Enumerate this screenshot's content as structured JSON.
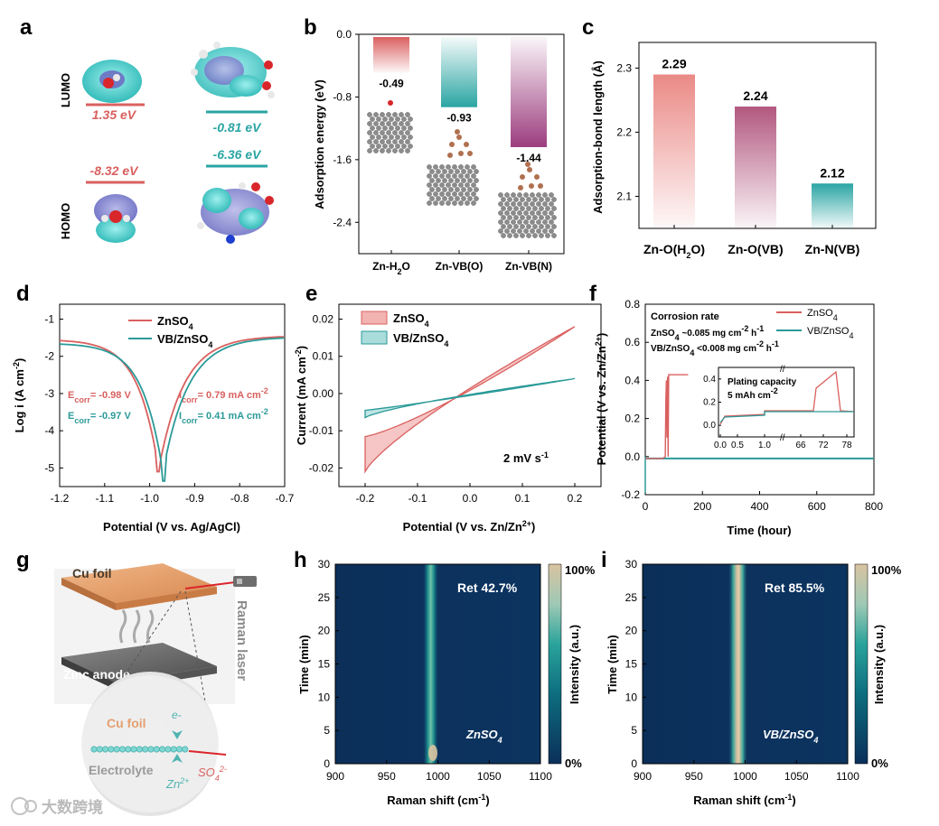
{
  "panel_letters": {
    "a": "a",
    "b": "b",
    "c": "c",
    "d": "d",
    "e": "e",
    "f": "f",
    "g": "g",
    "h": "h",
    "i": "i"
  },
  "panel_a": {
    "lumo_label": "LUMO",
    "homo_label": "HOMO",
    "h2o_lumo": "1.35 eV",
    "h2o_homo": "-8.32 eV",
    "vb_lumo": "-0.81 eV",
    "vb_homo": "-6.36 eV",
    "color_h2o": "#d9605f",
    "color_vb": "#2aa5a3"
  },
  "panel_g": {
    "cu_foil": "Cu foil",
    "zinc_anode": "Zinc anode",
    "raman_laser": "Raman laser",
    "cu_foil_zoom": "Cu foil",
    "electron": "e-",
    "electrolyte": "Electrolyte",
    "zn_ion": "Zn",
    "zn_charge": "2+",
    "so4": "SO",
    "so4_sub": "4",
    "so4_charge": "2-",
    "watermark": "大数跨境"
  },
  "chart_data": [
    {
      "id": "b",
      "type": "bar",
      "ylabel": "Adsorption energy (eV)",
      "ylim": [
        -2.8,
        0.0
      ],
      "yticks": [
        "0.0",
        "-0.8",
        "-1.6",
        "-2.4"
      ],
      "categories": [
        {
          "base": "Zn-H",
          "sub": "2",
          "tail": "O"
        },
        {
          "base": "Zn-VB(O)",
          "sub": "",
          "tail": ""
        },
        {
          "base": "Zn-VB(N)",
          "sub": "",
          "tail": ""
        }
      ],
      "values": [
        -0.49,
        -0.93,
        -1.44
      ],
      "labels": [
        "-0.49",
        "-0.93",
        "-1.44"
      ],
      "colors": [
        "#d9605f",
        "#2aa5a3",
        "#9c3d7f"
      ]
    },
    {
      "id": "c",
      "type": "bar",
      "ylabel": "Adsorption-bond length (Å)",
      "ylim": [
        2.05,
        2.34
      ],
      "yticks": [
        "2.1",
        "2.2",
        "2.3"
      ],
      "categories": [
        {
          "base": "Zn-O(H",
          "sub": "2",
          "tail": "O)"
        },
        {
          "base": "Zn-O(VB)",
          "sub": "",
          "tail": ""
        },
        {
          "base": "Zn-N(VB)",
          "sub": "",
          "tail": ""
        }
      ],
      "values": [
        2.29,
        2.24,
        2.12
      ],
      "labels": [
        "2.29",
        "2.24",
        "2.12"
      ],
      "colors": [
        "#ea8a86",
        "#b2587f",
        "#2aa5a3"
      ]
    },
    {
      "id": "d",
      "type": "line",
      "xlabel": "Potential (V vs. Ag/AgCl)",
      "ylabel": "Log i (A cm",
      "ylabel_sup": "-2",
      "ylabel_tail": ")",
      "xlim": [
        -1.2,
        -0.7
      ],
      "ylim": [
        -5.5,
        -0.6
      ],
      "xticks": [
        "-1.2",
        "-1.1",
        "-1.0",
        "-0.9",
        "-0.8",
        "-0.7"
      ],
      "yticks": [
        "-1",
        "-2",
        "-3",
        "-4",
        "-5"
      ],
      "series": [
        {
          "name": "ZnSO",
          "name_sub": "4",
          "ecorr": -0.98,
          "logi": -5.1,
          "color": "#d9605f",
          "ecorr_label": "= -0.98 V",
          "icorr_label": "= 0.79 mA cm"
        },
        {
          "name": "VB/ZnSO",
          "name_sub": "4",
          "ecorr": -0.97,
          "logi": -5.35,
          "color": "#2a9a98",
          "ecorr_label": "= -0.97 V",
          "icorr_label": "= 0.41 mA cm"
        }
      ],
      "annot_E": "E",
      "annot_E_sub": "corr",
      "annot_I": "I",
      "annot_I_sub": "corr",
      "annot_sup": "-2"
    },
    {
      "id": "e",
      "type": "line",
      "xlabel": "Potential (V vs. Zn/Zn",
      "xlabel_sup": "2+",
      "xlabel_tail": ")",
      "ylabel": "Current (mA cm",
      "ylabel_sup": "-2",
      "ylabel_tail": ")",
      "xlim": [
        -0.25,
        0.25
      ],
      "ylim": [
        -0.025,
        0.024
      ],
      "xticks": [
        "-0.2",
        "-0.1",
        "0.0",
        "0.1",
        "0.2"
      ],
      "yticks": [
        "0.02",
        "0.01",
        "0.00",
        "-0.01",
        "-0.02"
      ],
      "series": [
        {
          "name": "ZnSO",
          "name_sub": "4",
          "color": "#d9605f",
          "fill": "#f2b3b1",
          "max": 0.018,
          "min": -0.021
        },
        {
          "name": "VB/ZnSO",
          "name_sub": "4",
          "color": "#2a9a98",
          "fill": "#a9dcdb",
          "max": 0.004,
          "min": -0.0065
        }
      ],
      "scan_rate": "2 mV s",
      "scan_rate_sup": "-1"
    },
    {
      "id": "f",
      "type": "line",
      "xlabel": "Time (hour)",
      "ylabel": "Potential (V vs. Zn/Zn",
      "ylabel_sup": "2+",
      "ylabel_tail": ")",
      "xlim": [
        0,
        800
      ],
      "ylim": [
        -0.2,
        0.8
      ],
      "xticks": [
        "0",
        "200",
        "400",
        "600",
        "800"
      ],
      "yticks": [
        "0.8",
        "0.6",
        "0.4",
        "0.2",
        "0.0",
        "-0.2"
      ],
      "series": [
        {
          "name": "ZnSO",
          "name_sub": "4",
          "color": "#d9605f",
          "fail_time": 80
        },
        {
          "name": "VB/ZnSO",
          "name_sub": "4",
          "color": "#2a9a98",
          "end_time": 800
        }
      ],
      "corrosion_title": "Corrosion rate",
      "corrosion_1": "ZnSO",
      "corrosion_1_tail": " ~0.085 mg cm",
      "corrosion_2": "VB/ZnSO",
      "corrosion_2_tail": " <0.008 mg cm",
      "inset": {
        "title": "Plating capacity",
        "capacity": "5 mAh cm",
        "capacity_sup": "-2",
        "xticks": [
          "0.0",
          "0.5",
          "1.0",
          "66",
          "72",
          "78"
        ],
        "yticks": [
          "0.4",
          "0.2",
          "0.0"
        ]
      }
    },
    {
      "id": "h",
      "type": "heatmap",
      "xlabel": "Raman shift (cm",
      "xlabel_sup": "-1",
      "xlabel_tail": ")",
      "ylabel": "Time (min)",
      "colorbar_label": "Intensity (a.u.)",
      "colorbar_max": "100%",
      "colorbar_min": "0%",
      "xlim": [
        900,
        1100
      ],
      "ylim": [
        0,
        30
      ],
      "xticks": [
        "900",
        "950",
        "1000",
        "1050",
        "1100"
      ],
      "yticks": [
        "30",
        "25",
        "20",
        "15",
        "10",
        "5",
        "0"
      ],
      "peak": 993,
      "retention": "Ret 42.7%",
      "sample": "ZnSO",
      "sample_sub": "4"
    },
    {
      "id": "i",
      "type": "heatmap",
      "xlabel": "Raman shift (cm",
      "xlabel_sup": "-1",
      "xlabel_tail": ")",
      "ylabel": "Time (min)",
      "colorbar_label": "Intensity (a.u.)",
      "colorbar_max": "100%",
      "colorbar_min": "0%",
      "xlim": [
        900,
        1100
      ],
      "ylim": [
        0,
        30
      ],
      "xticks": [
        "900",
        "950",
        "1000",
        "1050",
        "1100"
      ],
      "yticks": [
        "30",
        "25",
        "20",
        "15",
        "10",
        "5",
        "0"
      ],
      "peak": 993,
      "retention": "Ret 85.5%",
      "sample": "VB/ZnSO",
      "sample_sub": "4"
    }
  ]
}
